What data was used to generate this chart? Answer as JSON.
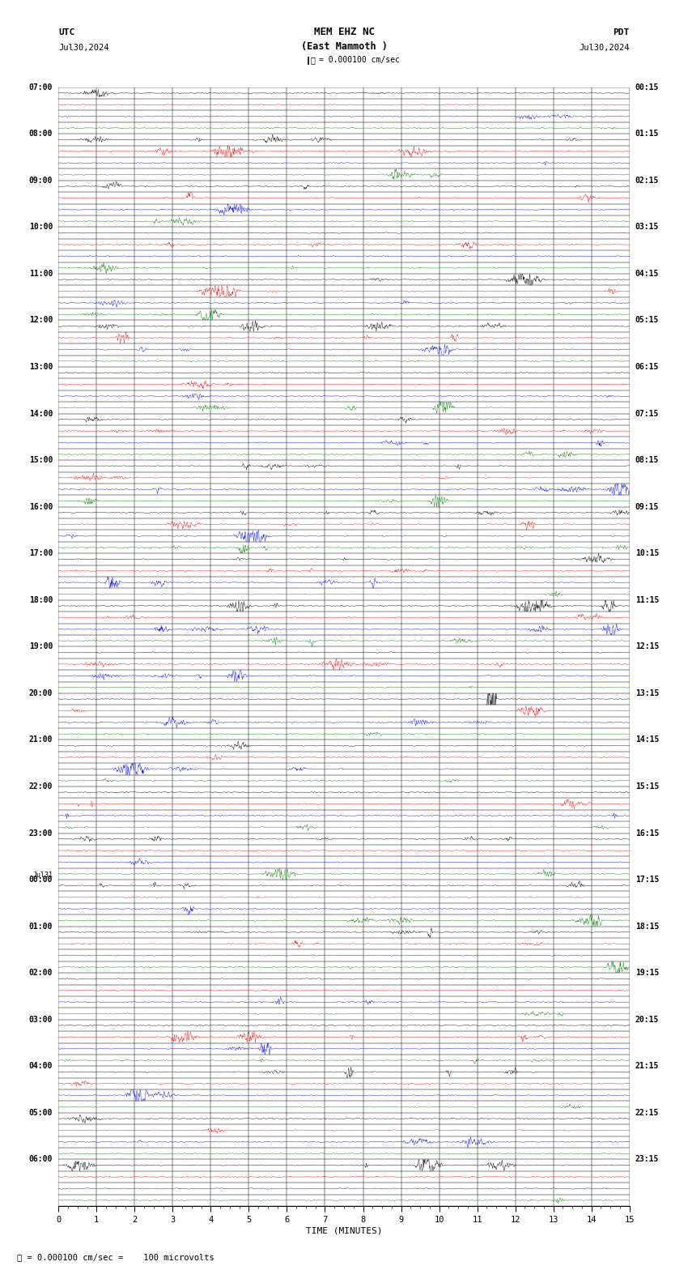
{
  "title_line1": "MEM EHZ NC",
  "title_line2": "(East Mammoth )",
  "scale_label": "= 0.000100 cm/sec",
  "left_header": "UTC",
  "right_header": "PDT",
  "left_date": "Jul30,2024",
  "right_date": "Jul30,2024",
  "bottom_xlabel": "TIME (MINUTES)",
  "bottom_note": "= 0.000100 cm/sec =    100 microvolts",
  "utc_times_hourly": [
    "07:00",
    "08:00",
    "09:00",
    "10:00",
    "11:00",
    "12:00",
    "13:00",
    "14:00",
    "15:00",
    "16:00",
    "17:00",
    "18:00",
    "19:00",
    "20:00",
    "21:00",
    "22:00",
    "23:00",
    "00:00",
    "01:00",
    "02:00",
    "03:00",
    "04:00",
    "05:00",
    "06:00"
  ],
  "pdt_times_hourly": [
    "00:15",
    "01:15",
    "02:15",
    "03:15",
    "04:15",
    "05:15",
    "06:15",
    "07:15",
    "08:15",
    "09:15",
    "10:15",
    "11:15",
    "12:15",
    "13:15",
    "14:15",
    "15:15",
    "16:15",
    "17:15",
    "18:15",
    "19:15",
    "20:15",
    "21:15",
    "22:15",
    "23:15"
  ],
  "trace_colors": [
    "black",
    "red",
    "blue",
    "green"
  ],
  "n_rows": 96,
  "n_hours": 24,
  "minutes": 15,
  "background_color": "white",
  "figsize": [
    8.5,
    15.84
  ],
  "dpi": 100,
  "jul31_row": 68
}
